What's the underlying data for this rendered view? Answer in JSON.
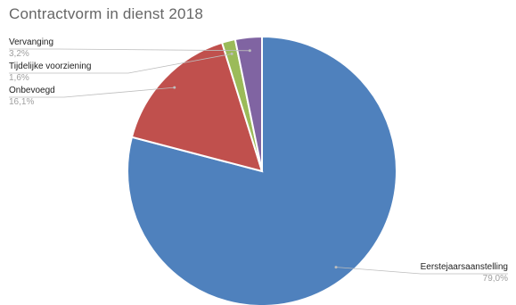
{
  "chart_data": {
    "type": "pie",
    "title": "Contractvorm in dienst 2018",
    "slices": [
      {
        "label": "Eerstejaarsaanstelling",
        "value": 79.0,
        "value_label": "79,0%",
        "color": "#4f81bd"
      },
      {
        "label": "Onbevoegd",
        "value": 16.1,
        "value_label": "16,1%",
        "color": "#c0504d"
      },
      {
        "label": "Tijdelijke voorziening",
        "value": 1.6,
        "value_label": "1,6%",
        "color": "#9bbb59"
      },
      {
        "label": "Vervanging",
        "value": 3.2,
        "value_label": "3,2%",
        "color": "#8064a2"
      }
    ],
    "legend": "none",
    "data_labels": "outside-with-leader-lines"
  }
}
